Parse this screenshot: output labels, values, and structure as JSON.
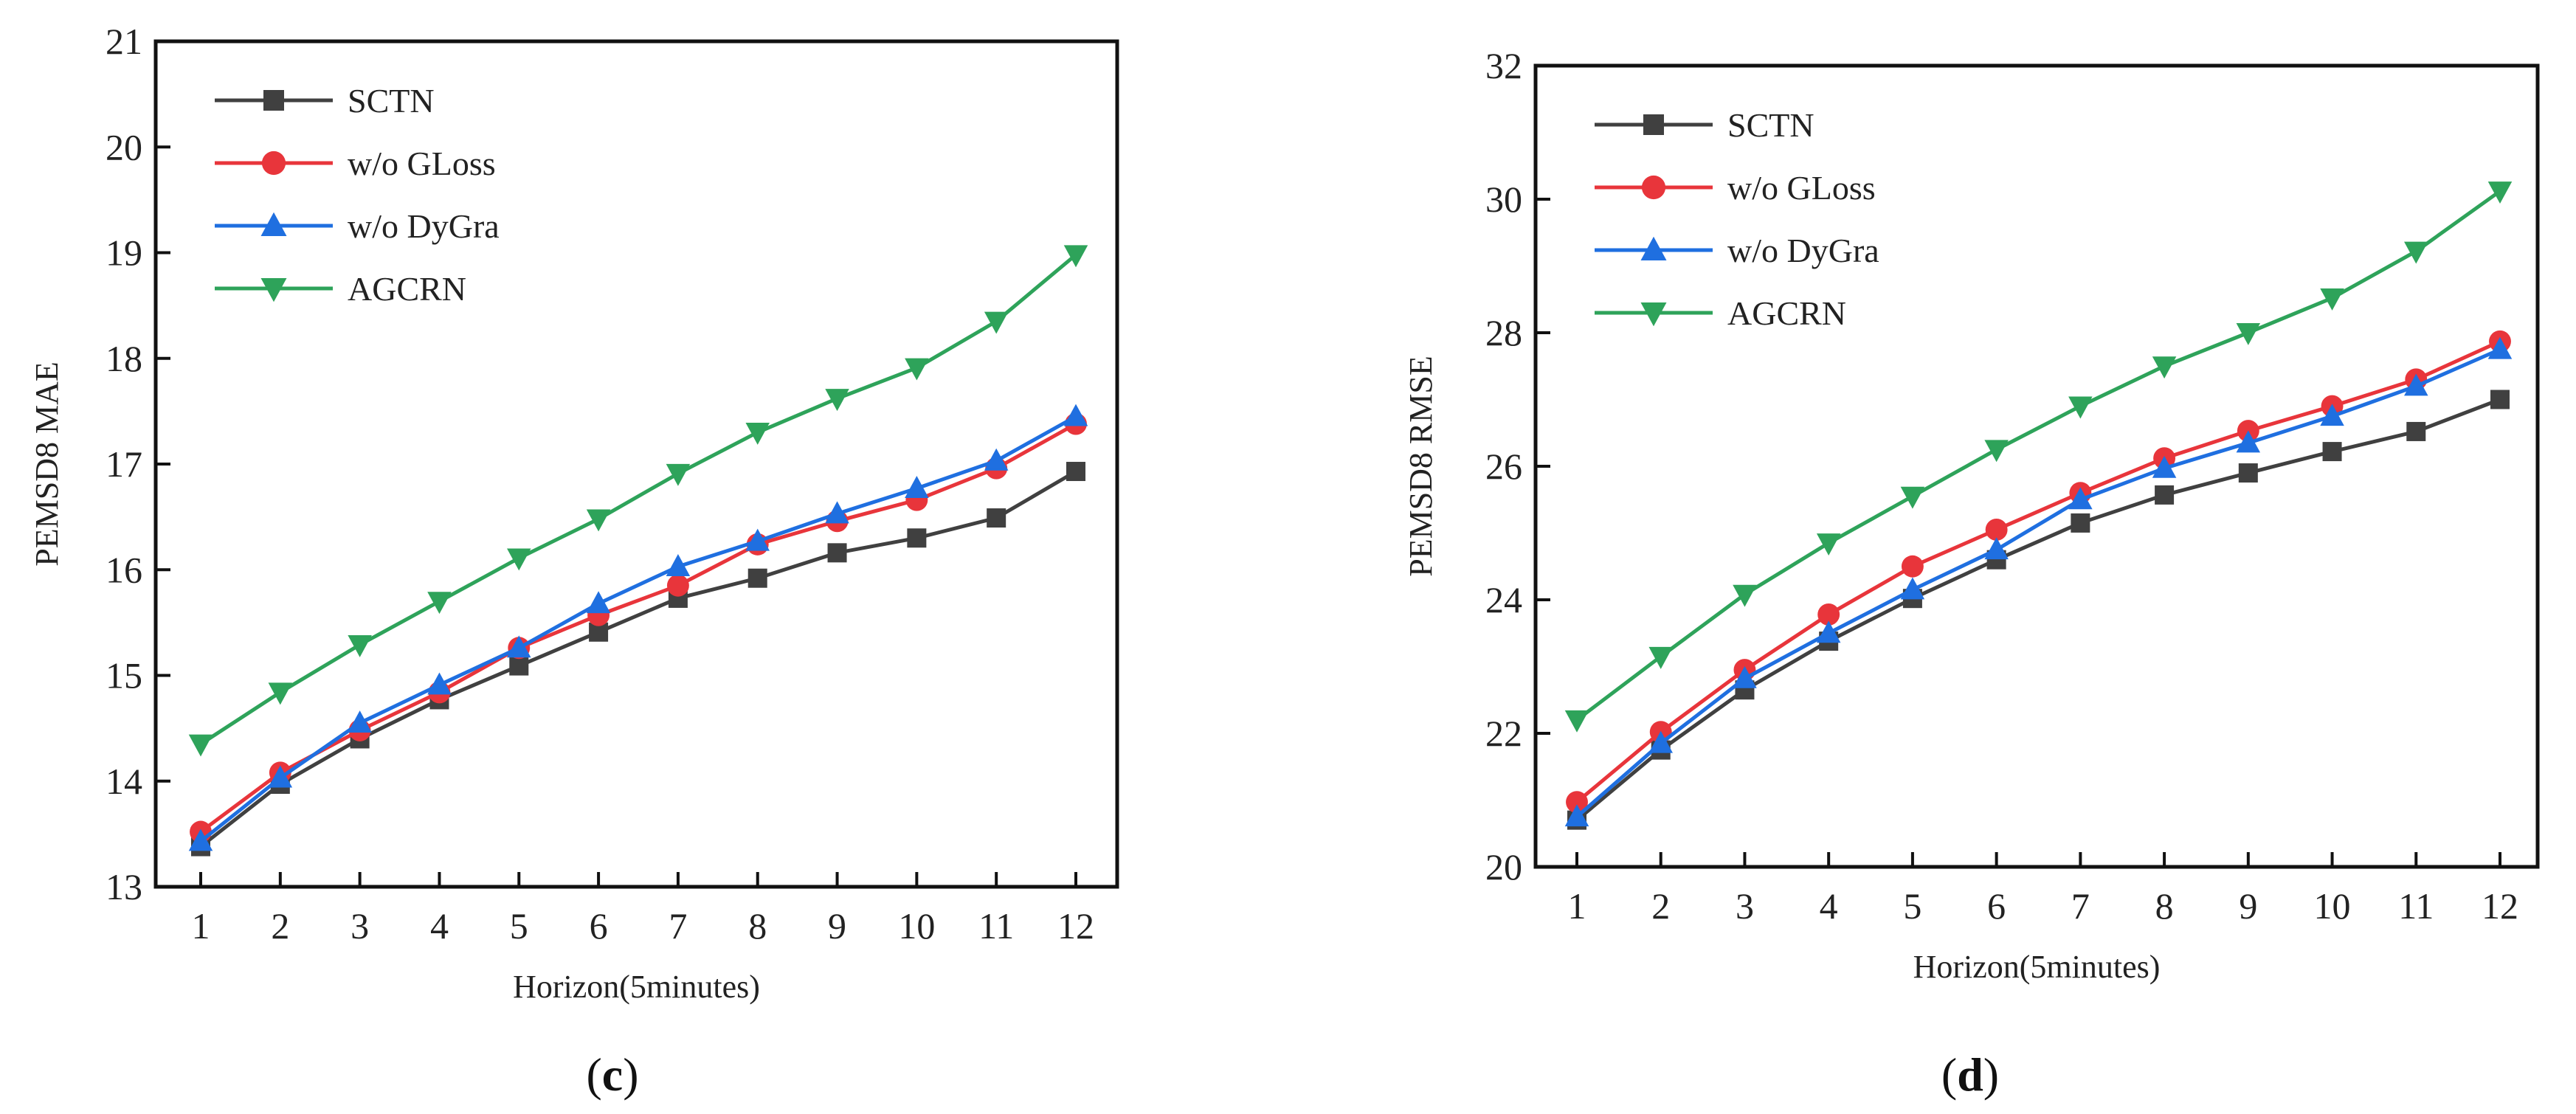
{
  "chart_data": [
    {
      "type": "line",
      "panel_label": "c",
      "xlabel": "Horizon(5minutes)",
      "ylabel": "PEMSD8 MAE",
      "x": [
        1,
        2,
        3,
        4,
        5,
        6,
        7,
        8,
        9,
        10,
        11,
        12
      ],
      "ylim": [
        13,
        21
      ],
      "yticks": [
        13,
        14,
        15,
        16,
        17,
        18,
        19,
        20,
        21
      ],
      "legend_position": "top-left",
      "series": [
        {
          "name": "SCTN",
          "color": "#404040",
          "marker": "square",
          "values": [
            13.38,
            13.97,
            14.4,
            14.77,
            15.09,
            15.41,
            15.73,
            15.92,
            16.16,
            16.3,
            16.49,
            16.93
          ]
        },
        {
          "name": "w/o GLoss",
          "color": "#e8353b",
          "marker": "circle",
          "values": [
            13.52,
            14.08,
            14.48,
            14.84,
            15.26,
            15.57,
            15.85,
            16.24,
            16.46,
            16.66,
            16.96,
            17.38
          ]
        },
        {
          "name": "w/o DyGra",
          "color": "#1f6fe0",
          "marker": "triangle-up",
          "values": [
            13.43,
            14.03,
            14.55,
            14.91,
            15.26,
            15.68,
            16.03,
            16.27,
            16.53,
            16.77,
            17.03,
            17.45
          ]
        },
        {
          "name": "AGCRN",
          "color": "#2ea35a",
          "marker": "triangle-down",
          "values": [
            14.35,
            14.84,
            15.29,
            15.7,
            16.11,
            16.48,
            16.91,
            17.3,
            17.62,
            17.91,
            18.35,
            18.98
          ]
        }
      ]
    },
    {
      "type": "line",
      "panel_label": "d",
      "xlabel": "Horizon(5minutes)",
      "ylabel": "PEMSD8 RMSE",
      "x": [
        1,
        2,
        3,
        4,
        5,
        6,
        7,
        8,
        9,
        10,
        11,
        12
      ],
      "ylim": [
        20,
        32
      ],
      "yticks": [
        20,
        22,
        24,
        26,
        28,
        30,
        32
      ],
      "legend_position": "top-left",
      "series": [
        {
          "name": "SCTN",
          "color": "#404040",
          "marker": "square",
          "values": [
            20.7,
            21.75,
            22.65,
            23.38,
            24.02,
            24.6,
            25.15,
            25.57,
            25.9,
            26.22,
            26.52,
            27.0
          ]
        },
        {
          "name": "w/o GLoss",
          "color": "#e8353b",
          "marker": "circle",
          "values": [
            20.97,
            22.02,
            22.95,
            23.78,
            24.5,
            25.05,
            25.6,
            26.12,
            26.53,
            26.9,
            27.3,
            27.87
          ]
        },
        {
          "name": "w/o DyGra",
          "color": "#1f6fe0",
          "marker": "triangle-up",
          "values": [
            20.75,
            21.85,
            22.82,
            23.5,
            24.15,
            24.75,
            25.5,
            25.97,
            26.35,
            26.75,
            27.2,
            27.75
          ]
        },
        {
          "name": "AGCRN",
          "color": "#2ea35a",
          "marker": "triangle-down",
          "values": [
            22.2,
            23.15,
            24.08,
            24.85,
            25.55,
            26.25,
            26.9,
            27.5,
            28.0,
            28.52,
            29.22,
            30.12
          ]
        }
      ]
    }
  ]
}
